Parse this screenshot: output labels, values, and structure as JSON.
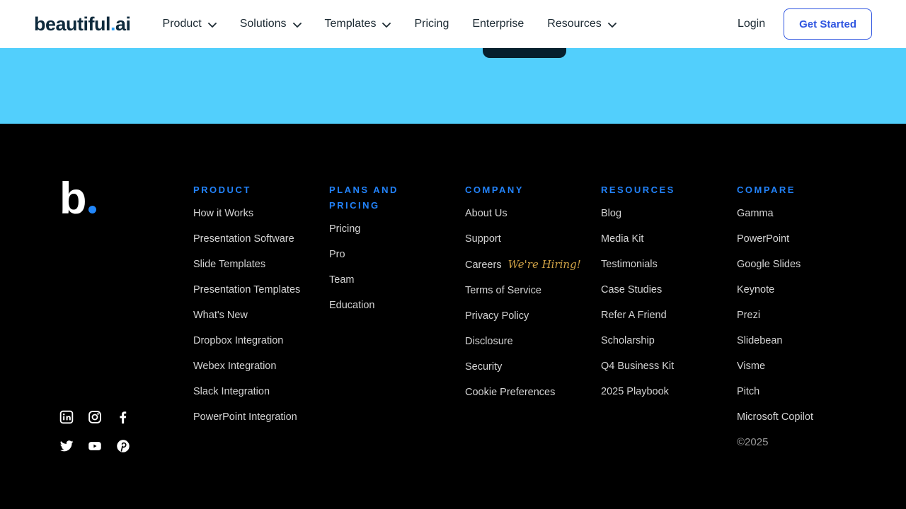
{
  "nav": {
    "logo": {
      "text_main": "beautiful",
      "text_dot": ".",
      "text_suffix": "ai"
    },
    "items": [
      {
        "label": "Product",
        "has_dropdown": true
      },
      {
        "label": "Solutions",
        "has_dropdown": true
      },
      {
        "label": "Templates",
        "has_dropdown": true
      },
      {
        "label": "Pricing",
        "has_dropdown": false
      },
      {
        "label": "Enterprise",
        "has_dropdown": false
      },
      {
        "label": "Resources",
        "has_dropdown": true
      }
    ],
    "login_label": "Login",
    "get_started_label": "Get Started"
  },
  "hero": {
    "note": "partially visible dark call-to-action button at top of cyan section"
  },
  "footer": {
    "logo": {
      "letter": "b"
    },
    "columns": [
      {
        "title": "PRODUCT",
        "links": [
          "How it Works",
          "Presentation Software",
          "Slide Templates",
          "Presentation Templates",
          "What's New",
          "Dropbox Integration",
          "Webex Integration",
          "Slack Integration",
          "PowerPoint Integration"
        ]
      },
      {
        "title": "PLANS AND PRICING",
        "links": [
          "Pricing",
          "Pro",
          "Team",
          "Education"
        ]
      },
      {
        "title": "COMPANY",
        "links": [
          "About Us",
          "Support",
          "Careers",
          "Terms of Service",
          "Privacy Policy",
          "Disclosure",
          "Security",
          "Cookie Preferences"
        ],
        "badge": {
          "after": "Careers",
          "text": "We're Hiring!"
        }
      },
      {
        "title": "RESOURCES",
        "links": [
          "Blog",
          "Media Kit",
          "Testimonials",
          "Case Studies",
          "Refer A Friend",
          "Scholarship",
          "Q4 Business Kit",
          "2025 Playbook"
        ]
      },
      {
        "title": "COMPARE",
        "links": [
          "Gamma",
          "PowerPoint",
          "Google Slides",
          "Keynote",
          "Prezi",
          "Slidebean",
          "Visme",
          "Pitch",
          "Microsoft Copilot"
        ],
        "copyright": "©2025"
      }
    ],
    "social": [
      "linkedin",
      "instagram",
      "facebook",
      "twitter",
      "youtube",
      "pinterest"
    ]
  },
  "colors": {
    "accent_blue": "#2F55E0",
    "cyan": "#52CFFC",
    "footer_header_blue": "#2282F9",
    "hiring_gold": "#D0A246",
    "dark_navy_button": "#06202E",
    "logo_dot_blue": "#2D9EF5",
    "footer_link_gray": "#D4D4D4"
  }
}
